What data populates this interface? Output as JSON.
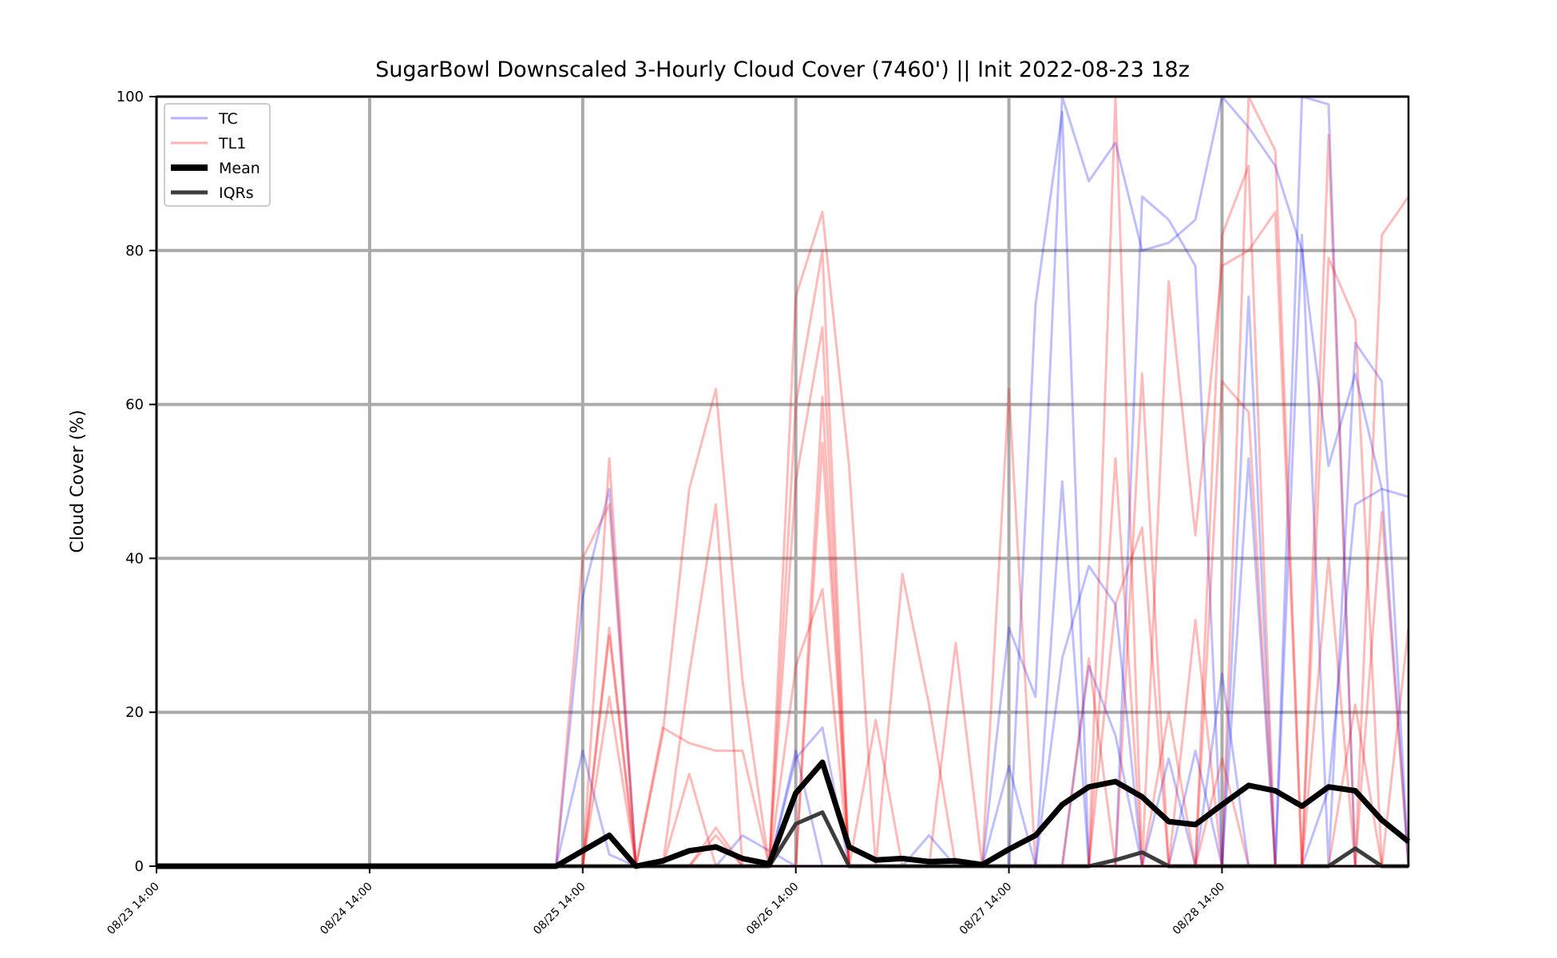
{
  "chart_data": {
    "type": "line",
    "title": "SugarBowl Downscaled 3-Hourly Cloud Cover (7460') || Init 2022-08-23 18z",
    "xlabel": "",
    "ylabel": "Cloud Cover (%)",
    "ylim": [
      0,
      100
    ],
    "yticks": [
      0,
      20,
      40,
      60,
      80,
      100
    ],
    "xticks": [
      {
        "t": 0,
        "label": "08/23 14:00"
      },
      {
        "t": 24,
        "label": "08/24 14:00"
      },
      {
        "t": 48,
        "label": "08/25 14:00"
      },
      {
        "t": 72,
        "label": "08/26 14:00"
      },
      {
        "t": 96,
        "label": "08/27 14:00"
      },
      {
        "t": 120,
        "label": "08/28 14:00"
      }
    ],
    "xlim_hours": [
      0,
      141
    ],
    "grid": true,
    "legend_position": "top-left",
    "legend": [
      {
        "label": "TC",
        "color": "#0000ff",
        "style": "thin-translucent"
      },
      {
        "label": "TL1",
        "color": "#ff0000",
        "style": "thin-translucent"
      },
      {
        "label": "Mean",
        "color": "#000000",
        "style": "thick"
      },
      {
        "label": "IQRs",
        "color": "#333333",
        "style": "medium"
      }
    ],
    "x_hours": [
      0,
      3,
      6,
      9,
      12,
      15,
      18,
      21,
      24,
      27,
      30,
      33,
      36,
      39,
      42,
      45,
      48,
      51,
      54,
      57,
      60,
      63,
      66,
      69,
      72,
      75,
      78,
      81,
      84,
      87,
      90,
      93,
      96,
      99,
      102,
      105,
      108,
      111,
      114,
      117,
      120,
      123,
      126,
      129,
      132,
      135,
      138,
      141
    ],
    "series": [
      {
        "name": "Mean",
        "color": "#000000",
        "values": [
          0,
          0,
          0,
          0,
          0,
          0,
          0,
          0,
          0,
          0,
          0,
          0,
          0,
          0,
          0,
          0,
          2,
          4,
          0,
          0.7,
          2,
          2.5,
          1,
          0.3,
          9.5,
          13.5,
          2.5,
          0.8,
          1,
          0.6,
          0.7,
          0.2,
          2.2,
          4,
          8,
          10.3,
          11,
          9,
          5.8,
          5.4,
          8,
          10.5,
          9.8,
          7.8,
          10.3,
          9.8,
          6,
          3.2
        ]
      },
      {
        "name": "IQRs",
        "color": "#333333",
        "values": [
          0,
          0,
          0,
          0,
          0,
          0,
          0,
          0,
          0,
          0,
          0,
          0,
          0,
          0,
          0,
          0,
          0,
          0,
          0,
          0,
          0,
          0,
          0,
          0,
          5.5,
          7,
          0,
          0,
          0,
          0,
          0,
          0,
          0,
          0,
          0,
          0,
          0.8,
          1.8,
          0,
          0,
          0,
          0,
          0,
          0,
          0,
          2.3,
          0,
          0
        ]
      },
      {
        "name": "",
        "color": "#0000ff",
        "values": [
          0,
          0,
          0,
          0,
          0,
          0,
          0,
          0,
          0,
          0,
          0,
          0,
          0,
          0,
          0,
          0,
          15,
          1.5,
          0,
          0,
          0,
          0,
          0,
          0,
          14,
          18,
          0,
          0,
          0,
          0,
          0,
          0,
          31,
          22,
          100,
          89,
          94,
          80,
          81,
          84,
          100,
          96,
          91,
          80,
          52,
          64,
          49,
          48
        ]
      },
      {
        "name": "",
        "color": "#0000ff",
        "values": [
          0,
          0,
          0,
          0,
          0,
          0,
          0,
          0,
          0,
          0,
          0,
          0,
          0,
          0,
          0,
          0,
          35,
          49,
          0,
          0,
          0,
          0,
          0,
          0,
          0,
          0,
          0,
          0,
          0,
          0,
          0,
          0,
          0,
          73,
          98,
          0,
          0,
          87,
          84,
          78,
          0,
          0,
          0,
          100,
          99,
          0,
          0,
          0
        ]
      },
      {
        "name": "",
        "color": "#0000ff",
        "values": [
          0,
          0,
          0,
          0,
          0,
          0,
          0,
          0,
          0,
          0,
          0,
          0,
          0,
          0,
          0,
          0,
          0,
          0,
          0,
          0,
          0,
          0,
          4,
          2,
          0,
          0,
          0,
          0,
          0,
          4,
          0,
          0,
          0,
          0,
          50,
          0,
          0,
          0,
          0,
          0,
          0,
          74,
          0,
          82,
          0,
          68,
          63,
          0
        ]
      },
      {
        "name": "",
        "color": "#0000ff",
        "values": [
          0,
          0,
          0,
          0,
          0,
          0,
          0,
          0,
          0,
          0,
          0,
          0,
          0,
          0,
          0,
          0,
          0,
          0,
          0,
          0,
          0,
          0,
          0,
          0,
          15,
          0,
          0,
          0,
          0,
          0,
          0,
          0,
          0,
          0,
          27,
          39,
          34,
          0,
          14,
          0,
          25,
          0,
          0,
          0,
          10,
          47,
          49,
          0
        ]
      },
      {
        "name": "",
        "color": "#0000ff",
        "values": [
          0,
          0,
          0,
          0,
          0,
          0,
          0,
          0,
          0,
          0,
          0,
          0,
          0,
          0,
          0,
          0,
          0,
          0,
          0,
          0,
          0,
          0,
          0,
          0,
          0,
          0,
          0,
          0,
          0,
          0,
          0,
          0,
          13,
          0,
          0,
          26,
          17,
          0,
          0,
          15,
          0,
          53,
          0,
          0,
          0,
          0,
          0,
          0
        ]
      },
      {
        "name": "",
        "color": "#ff0000",
        "values": [
          0,
          0,
          0,
          0,
          0,
          0,
          0,
          0,
          0,
          0,
          0,
          0,
          0,
          0,
          0,
          0,
          40,
          47,
          0,
          17,
          49,
          62,
          24,
          0,
          74,
          85,
          52,
          0,
          38,
          21,
          0,
          0,
          62,
          0,
          0,
          0,
          0,
          64,
          0,
          0,
          82,
          91,
          0,
          0,
          95,
          0,
          82,
          87
        ]
      },
      {
        "name": "",
        "color": "#ff0000",
        "values": [
          0,
          0,
          0,
          0,
          0,
          0,
          0,
          0,
          0,
          0,
          0,
          0,
          0,
          0,
          0,
          0,
          0,
          53,
          0,
          0,
          25,
          47,
          0,
          0,
          60,
          80,
          0,
          0,
          0,
          0,
          29,
          0,
          0,
          0,
          0,
          0,
          100,
          0,
          76,
          43,
          78,
          80,
          85,
          0,
          0,
          0,
          0,
          31
        ]
      },
      {
        "name": "",
        "color": "#ff0000",
        "values": [
          0,
          0,
          0,
          0,
          0,
          0,
          0,
          0,
          0,
          0,
          0,
          0,
          0,
          0,
          0,
          0,
          0,
          30,
          0,
          18,
          16,
          15,
          15,
          0,
          50,
          70,
          0,
          0,
          0,
          0,
          0,
          0,
          0,
          0,
          0,
          0,
          0,
          0,
          0,
          0,
          63,
          59,
          0,
          0,
          79,
          71,
          0,
          0
        ]
      },
      {
        "name": "",
        "color": "#ff0000",
        "values": [
          0,
          0,
          0,
          0,
          0,
          0,
          0,
          0,
          0,
          0,
          0,
          0,
          0,
          0,
          0,
          0,
          0,
          31,
          0,
          0,
          12,
          0,
          0,
          0,
          0,
          55,
          0,
          0,
          0,
          0,
          0,
          0,
          0,
          0,
          0,
          0,
          53,
          0,
          0,
          0,
          0,
          100,
          93,
          0,
          0,
          0,
          46,
          0
        ]
      },
      {
        "name": "",
        "color": "#ff0000",
        "values": [
          0,
          0,
          0,
          0,
          0,
          0,
          0,
          0,
          0,
          0,
          0,
          0,
          0,
          0,
          0,
          0,
          0,
          22,
          0,
          0,
          0,
          5,
          0,
          0,
          26,
          36,
          0,
          0,
          0,
          0,
          0,
          0,
          0,
          0,
          0,
          0,
          34,
          44,
          0,
          0,
          0,
          0,
          0,
          0,
          0,
          21,
          0,
          0
        ]
      },
      {
        "name": "",
        "color": "#ff0000",
        "values": [
          0,
          0,
          0,
          0,
          0,
          0,
          0,
          0,
          0,
          0,
          0,
          0,
          0,
          0,
          0,
          0,
          0,
          0,
          0,
          0,
          0,
          4,
          0,
          0,
          0,
          61,
          0,
          0,
          0,
          0,
          0,
          0,
          0,
          0,
          0,
          0,
          0,
          0,
          0,
          32,
          0,
          0,
          0,
          0,
          0,
          0,
          0,
          0
        ]
      },
      {
        "name": "",
        "color": "#ff0000",
        "values": [
          0,
          0,
          0,
          0,
          0,
          0,
          0,
          0,
          0,
          0,
          0,
          0,
          0,
          0,
          0,
          0,
          0,
          0,
          0,
          0,
          0,
          0,
          0,
          0,
          0,
          0,
          0,
          19,
          0,
          0,
          0,
          0,
          0,
          0,
          0,
          27,
          0,
          0,
          20,
          0,
          14,
          0,
          0,
          0,
          40,
          0,
          0,
          0
        ]
      }
    ]
  }
}
